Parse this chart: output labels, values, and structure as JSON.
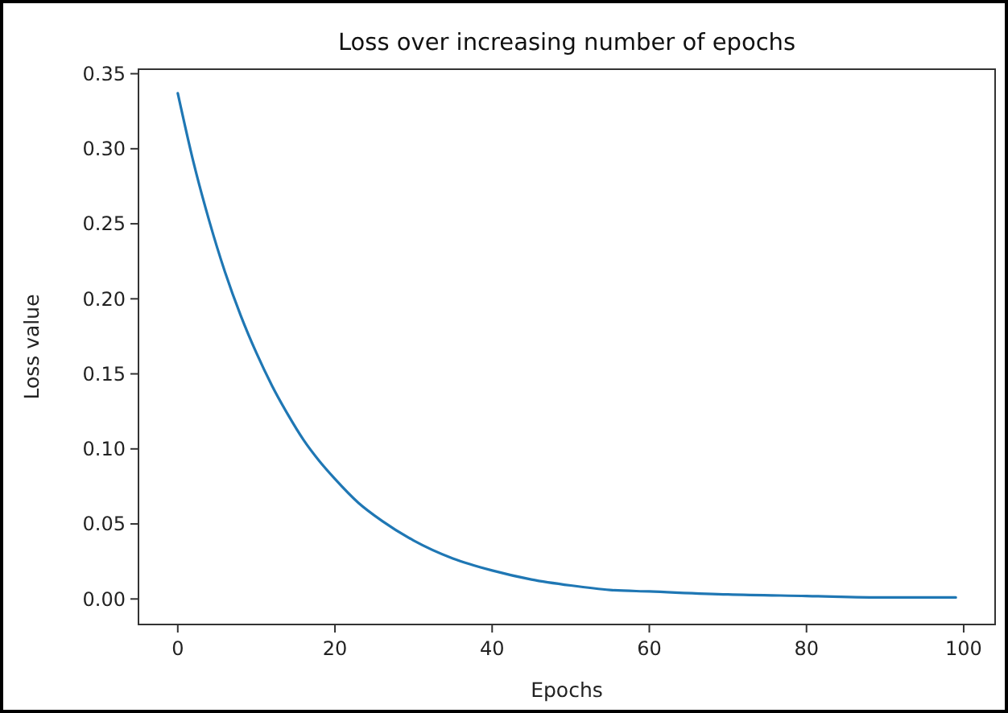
{
  "chart_data": {
    "type": "line",
    "title": "Loss over increasing number of epochs",
    "xlabel": "Epochs",
    "ylabel": "Loss value",
    "x": [
      0,
      2,
      4,
      6,
      8,
      10,
      12,
      14,
      16,
      18,
      20,
      23,
      26,
      30,
      35,
      40,
      45,
      50,
      55,
      60,
      70,
      80,
      90,
      99
    ],
    "series": [
      {
        "color": "#1f77b4",
        "values": [
          0.337,
          0.291,
          0.252,
          0.218,
          0.189,
          0.164,
          0.142,
          0.123,
          0.106,
          0.092,
          0.08,
          0.064,
          0.052,
          0.039,
          0.027,
          0.019,
          0.013,
          0.009,
          0.006,
          0.005,
          0.003,
          0.002,
          0.001,
          0.001
        ]
      }
    ],
    "xlim": [
      -5,
      104
    ],
    "xticks": [
      0,
      20,
      40,
      60,
      80,
      100
    ],
    "ylim": [
      -0.017,
      0.353
    ],
    "yticks": [
      {
        "value": 0,
        "label": "0.00"
      },
      {
        "value": 0.05,
        "label": "0.05"
      },
      {
        "value": 0.1,
        "label": "0.10"
      },
      {
        "value": 0.15,
        "label": "0.15"
      },
      {
        "value": 0.2,
        "label": "0.20"
      },
      {
        "value": 0.25,
        "label": "0.25"
      },
      {
        "value": 0.3,
        "label": "0.30"
      },
      {
        "value": 0.35,
        "label": "0.35"
      }
    ],
    "grid": false,
    "marker": "none",
    "line_style": "solid"
  }
}
